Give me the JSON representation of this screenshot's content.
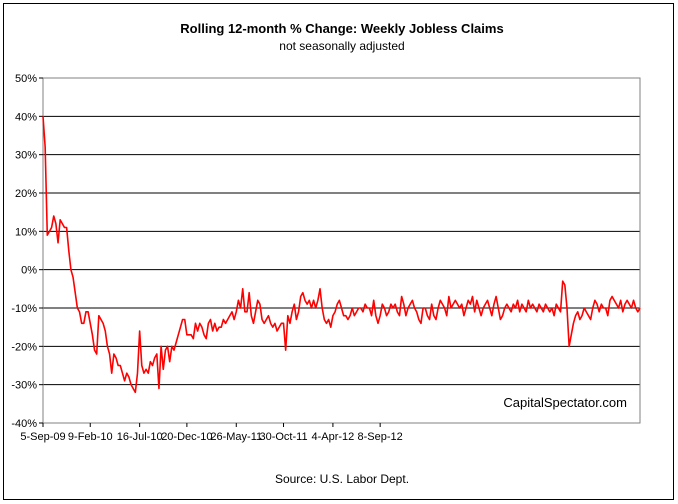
{
  "chart_data": {
    "type": "line",
    "title": "Rolling 12-month %  Change: Weekly Jobless Claims",
    "subtitle": "not seasonally adjusted",
    "watermark": "CapitalSpectator.com",
    "source": "Source: U.S. Labor Dept.",
    "xlabel": "",
    "ylabel": "",
    "ylim": [
      -40,
      50
    ],
    "yticks": [
      50,
      40,
      30,
      20,
      10,
      0,
      -10,
      -20,
      -30,
      -40
    ],
    "ytick_labels": [
      "50%",
      "40%",
      "30%",
      "20%",
      "10%",
      "0%",
      "-10%",
      "-20%",
      "-30%",
      "-40%"
    ],
    "x_tick_labels": [
      "5-Sep-09",
      "9-Feb-10",
      "16-Jul-10",
      "20-Dec-10",
      "26-May-11",
      "30-Oct-11",
      "4-Apr-12",
      "8-Sep-12"
    ],
    "x_tick_weeks": [
      0,
      22,
      45,
      67,
      90,
      112,
      135,
      157
    ],
    "grid": true,
    "line_color": "#ff0000",
    "x_week_step": 1,
    "series": [
      {
        "values": [
          40,
          32,
          9,
          10,
          11,
          14,
          12,
          7,
          13,
          12,
          11,
          11,
          5,
          0,
          -2,
          -6,
          -10,
          -11,
          -14,
          -14,
          -11,
          -11,
          -14,
          -17,
          -21,
          -22,
          -12,
          -13,
          -14,
          -16,
          -20,
          -22,
          -27,
          -22,
          -23,
          -25,
          -25,
          -27,
          -29,
          -27,
          -28,
          -30,
          -31,
          -32,
          -27,
          -16,
          -25,
          -27,
          -26,
          -27,
          -24,
          -25,
          -23,
          -22,
          -31,
          -20,
          -26,
          -21,
          -20,
          -24,
          -20,
          -21,
          -19,
          -17,
          -15,
          -13,
          -13,
          -17,
          -17,
          -17,
          -18,
          -14,
          -16,
          -14,
          -15,
          -17,
          -18,
          -14,
          -13,
          -16,
          -14,
          -16,
          -15,
          -15,
          -13,
          -14,
          -13,
          -12,
          -11,
          -13,
          -11,
          -8,
          -10,
          -5,
          -11,
          -11,
          -6,
          -12,
          -14,
          -11,
          -8,
          -9,
          -13,
          -14,
          -13,
          -12,
          -14,
          -15,
          -14,
          -16,
          -15,
          -14,
          -14,
          -21,
          -12,
          -14,
          -11,
          -9,
          -13,
          -11,
          -7,
          -6,
          -8,
          -9,
          -8,
          -10,
          -8,
          -10,
          -8,
          -5,
          -10,
          -13,
          -14,
          -13,
          -15,
          -12,
          -11,
          -9,
          -8,
          -10,
          -12,
          -12,
          -13,
          -12,
          -10,
          -12,
          -11,
          -10,
          -10,
          -11,
          -9,
          -10,
          -10,
          -12,
          -8,
          -12,
          -14,
          -12,
          -9,
          -10,
          -12,
          -11,
          -9,
          -10,
          -9,
          -11,
          -12,
          -7,
          -9,
          -12,
          -10,
          -9,
          -8,
          -10,
          -11,
          -13,
          -14,
          -10,
          -10,
          -12,
          -13,
          -9,
          -12,
          -13,
          -10,
          -8,
          -9,
          -10,
          -12,
          -7,
          -10,
          -9,
          -8,
          -9,
          -10,
          -9,
          -12,
          -10,
          -8,
          -9,
          -7,
          -11,
          -8,
          -10,
          -12,
          -10,
          -9,
          -8,
          -10,
          -12,
          -9,
          -7,
          -10,
          -13,
          -12,
          -10,
          -9,
          -10,
          -11,
          -9,
          -10,
          -8,
          -11,
          -9,
          -10,
          -11,
          -8,
          -10,
          -9,
          -10,
          -11,
          -9,
          -10,
          -11,
          -9,
          -10,
          -11,
          -10,
          -12,
          -9,
          -10,
          -11,
          -3,
          -4,
          -10,
          -20,
          -17,
          -14,
          -12,
          -11,
          -13,
          -12,
          -10,
          -11,
          -12,
          -13,
          -10,
          -8,
          -9,
          -11,
          -9,
          -10,
          -10,
          -12,
          -8,
          -7,
          -8,
          -9,
          -10,
          -8,
          -11,
          -9,
          -8,
          -9,
          -10,
          -8,
          -10,
          -11,
          -10
        ]
      }
    ]
  }
}
